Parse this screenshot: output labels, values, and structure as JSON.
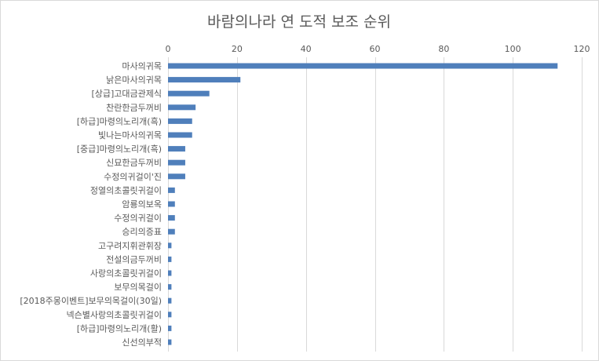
{
  "chart_data": {
    "type": "bar",
    "orientation": "horizontal",
    "title": "바람의나라 연 도적 보조 순위",
    "xlabel": "",
    "ylabel": "",
    "xlim": [
      0,
      120
    ],
    "x_ticks": [
      0,
      20,
      40,
      60,
      80,
      100,
      120
    ],
    "x_tick_labels": [
      "0",
      "20",
      "40",
      "60",
      "80",
      "100",
      "120"
    ],
    "axis_position": "top",
    "grid": true,
    "legend": "none",
    "bar_color": "#4f7fbb",
    "categories": [
      "마사의귀목",
      "낡은마사의귀목",
      "[상급]고대금관제식",
      "찬란한금두꺼비",
      "[하급]마령의노리개(흑)",
      "빛나는마사의귀목",
      "[중급]마령의노리개(흑)",
      "신묘한금두꺼비",
      "수정의귀걸이'진",
      "정열의초콜릿귀걸이",
      "암룡의보옥",
      "수정의귀걸이",
      "승리의증표",
      "고구려지휘관휘장",
      "전설의금두꺼비",
      "사랑의초콜릿귀걸이",
      "보무의목걸이",
      "[2018주몽이벤트]보무의목걸이(30일)",
      "넥슨별사랑의초콜릿귀걸이",
      "[하급]마령의노리개(활)",
      "신선의부적"
    ],
    "values": [
      113,
      21,
      12,
      8,
      7,
      7,
      5,
      5,
      5,
      2,
      2,
      2,
      2,
      1,
      1,
      1,
      1,
      1,
      1,
      1,
      1
    ]
  }
}
